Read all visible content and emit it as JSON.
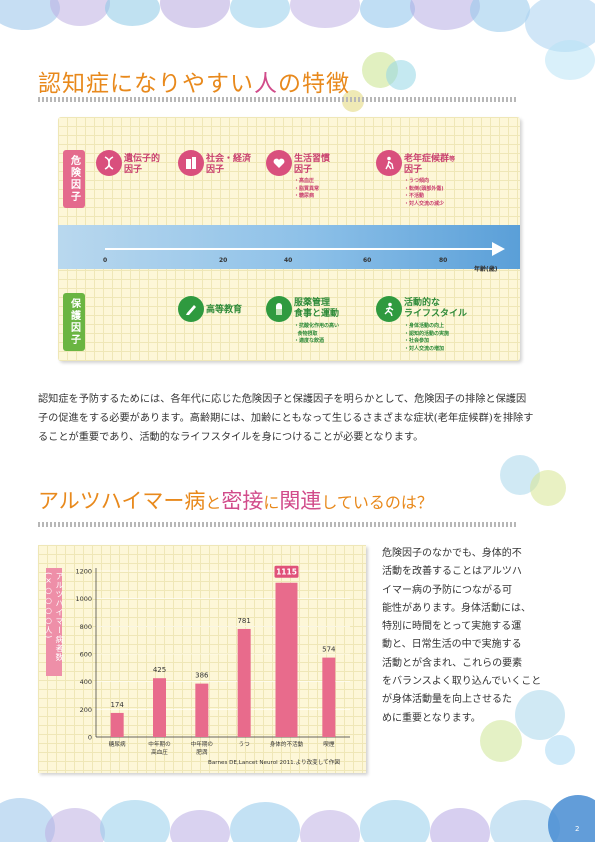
{
  "section1": {
    "title_a": "認知症になりやすい",
    "title_b": "人",
    "title_c": "の特徴",
    "risk_tab": "危険因子",
    "protect_tab": "保護因子",
    "risk_factors": [
      {
        "icon": "dna-icon",
        "title1": "遺伝子的",
        "title2": "因子",
        "items": ""
      },
      {
        "icon": "building-icon",
        "title1": "社会・経済",
        "title2": "因子",
        "items": ""
      },
      {
        "icon": "heart-icon",
        "title1": "生活習慣",
        "title2": "因子",
        "items": "・高血圧\n・脂質異常\n・糖尿病"
      },
      {
        "icon": "walker-icon",
        "title1": "老年症候群",
        "title1_small": "等",
        "title2": "因子",
        "items": "・うつ傾向\n・転倒(頭部外傷)\n・不活動\n・対人交流の減少"
      }
    ],
    "protect_factors": [
      {
        "icon": "pen-icon",
        "title1": "高等教育",
        "title2": "",
        "items": ""
      },
      {
        "icon": "pill-icon",
        "title1": "服薬管理",
        "title2": "食事と運動",
        "items": "・抗酸化作用の高い\n  食物摂取\n・適度な飲酒"
      },
      {
        "icon": "runner-icon",
        "title1": "活動的な",
        "title2": "ライフスタイル",
        "items": "・身体活動の向上\n・認知的活動の実施\n・社会参加\n・対人交流の増加"
      }
    ],
    "axis_ticks": [
      "0",
      "20",
      "40",
      "60",
      "80"
    ],
    "axis_unit": "年齢(歳)",
    "paragraph": "認知症を予防するためには、各年代に応じた危険因子と保護因子を明らかとして、危険因子の排除と保護因\n子の促進をする必要があります。高齢期には、加齢にともなって生じるさまざまな症状(老年症候群)を排除す\nることが重要であり、活動的なライフスタイルを身につけることが必要となります。"
  },
  "section2": {
    "title_a": "アルツハイマー病",
    "title_b": "と",
    "title_c": "密接",
    "title_d": "に",
    "title_e": "関連",
    "title_f": "しているのは？",
    "side_text": "危険因子のなかでも、身体的不\n活動を改善することはアルツハ\nイマー病の予防につながる可\n能性があります。身体活動には、\n特別に時間をとって実施する運\n動と、日常生活の中で実施する\n活動とが含まれ、これらの要素\nをバランスよく取り込んでいくこと\nが身体活動量を向上させるた\nめに重要となります。",
    "source": "Barnes DE,Lancet Neurol 2011.より改変して作図"
  },
  "chart_data": {
    "type": "bar",
    "ylabel": "アルツハイマー病者数(×○○○○人)",
    "ylim": [
      0,
      1200
    ],
    "yticks": [
      "0",
      "200",
      "400",
      "600",
      "800",
      "1000",
      "1200"
    ],
    "categories": [
      [
        "糖尿病"
      ],
      [
        "中年期の",
        "高血圧"
      ],
      [
        "中年期の",
        "肥満"
      ],
      [
        "うつ"
      ],
      [
        "身体的不活動"
      ],
      [
        "喫煙"
      ]
    ],
    "values": [
      174,
      425,
      386,
      781,
      1115,
      574
    ],
    "value_labels": [
      "174",
      "425",
      "386",
      "781",
      "1115",
      "574"
    ],
    "highlight_index": 4,
    "colors": {
      "bar": "#e86b8c",
      "highlight_label": "#e0527a"
    }
  },
  "footer": {
    "page_number": "2"
  }
}
